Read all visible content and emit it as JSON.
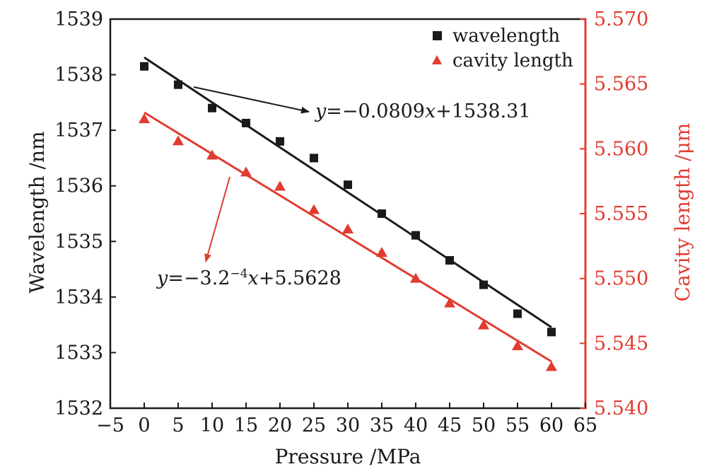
{
  "chart_data": {
    "type": "scatter",
    "xlabel": "Pressure /MPa",
    "ylabel": "Wavelength /nm",
    "y2label": "Cavity length /μm",
    "xlim": [
      -5,
      65
    ],
    "ylim": [
      1532,
      1539
    ],
    "y2lim": [
      5.54,
      5.57
    ],
    "x_ticks": [
      -5,
      0,
      5,
      10,
      15,
      20,
      25,
      30,
      35,
      40,
      45,
      50,
      55,
      60,
      65
    ],
    "x_tick_labels": [
      "−5",
      "0",
      "5",
      "10",
      "15",
      "20",
      "25",
      "30",
      "35",
      "40",
      "45",
      "50",
      "55",
      "60",
      "65"
    ],
    "y_ticks": [
      1532,
      1533,
      1534,
      1535,
      1536,
      1537,
      1538,
      1539
    ],
    "y_tick_labels": [
      "1532",
      "1533",
      "1534",
      "1535",
      "1536",
      "1537",
      "1538",
      "1539"
    ],
    "y2_ticks": [
      5.54,
      5.545,
      5.55,
      5.555,
      5.56,
      5.565,
      5.57
    ],
    "y2_tick_labels": [
      "5.540",
      "5.545",
      "5.550",
      "5.555",
      "5.560",
      "5.565",
      "5.570"
    ],
    "legend_position": "top-right",
    "series": [
      {
        "name": "wavelength",
        "axis": "left",
        "marker": "square",
        "color": "#1a1a1a",
        "x": [
          0,
          5,
          10,
          15,
          20,
          25,
          30,
          35,
          40,
          45,
          50,
          55,
          60
        ],
        "values": [
          1538.15,
          1537.82,
          1537.4,
          1537.13,
          1536.8,
          1536.5,
          1536.02,
          1535.5,
          1535.11,
          1534.66,
          1534.22,
          1533.7,
          1533.37
        ],
        "fit": {
          "slope": -0.0809,
          "intercept": 1538.31,
          "x_range": [
            0,
            60
          ]
        },
        "equation_text": "y=−0.0809x+1538.31"
      },
      {
        "name": "cavity length",
        "axis": "right",
        "marker": "triangle",
        "color": "#e03c31",
        "x": [
          0,
          5,
          10,
          15,
          20,
          25,
          30,
          35,
          40,
          45,
          50,
          55,
          60
        ],
        "values": [
          5.5623,
          5.5606,
          5.5595,
          5.5582,
          5.5571,
          5.5553,
          5.5538,
          5.552,
          5.55,
          5.5481,
          5.5464,
          5.5448,
          5.5432
        ],
        "fit": {
          "slope": -0.00032,
          "intercept": 5.5628,
          "x_range": [
            0,
            60
          ]
        },
        "equation_text": "y=−3.2−4x+5.5628"
      }
    ]
  },
  "colors": {
    "black": "#1a1a1a",
    "red": "#e03c31"
  }
}
